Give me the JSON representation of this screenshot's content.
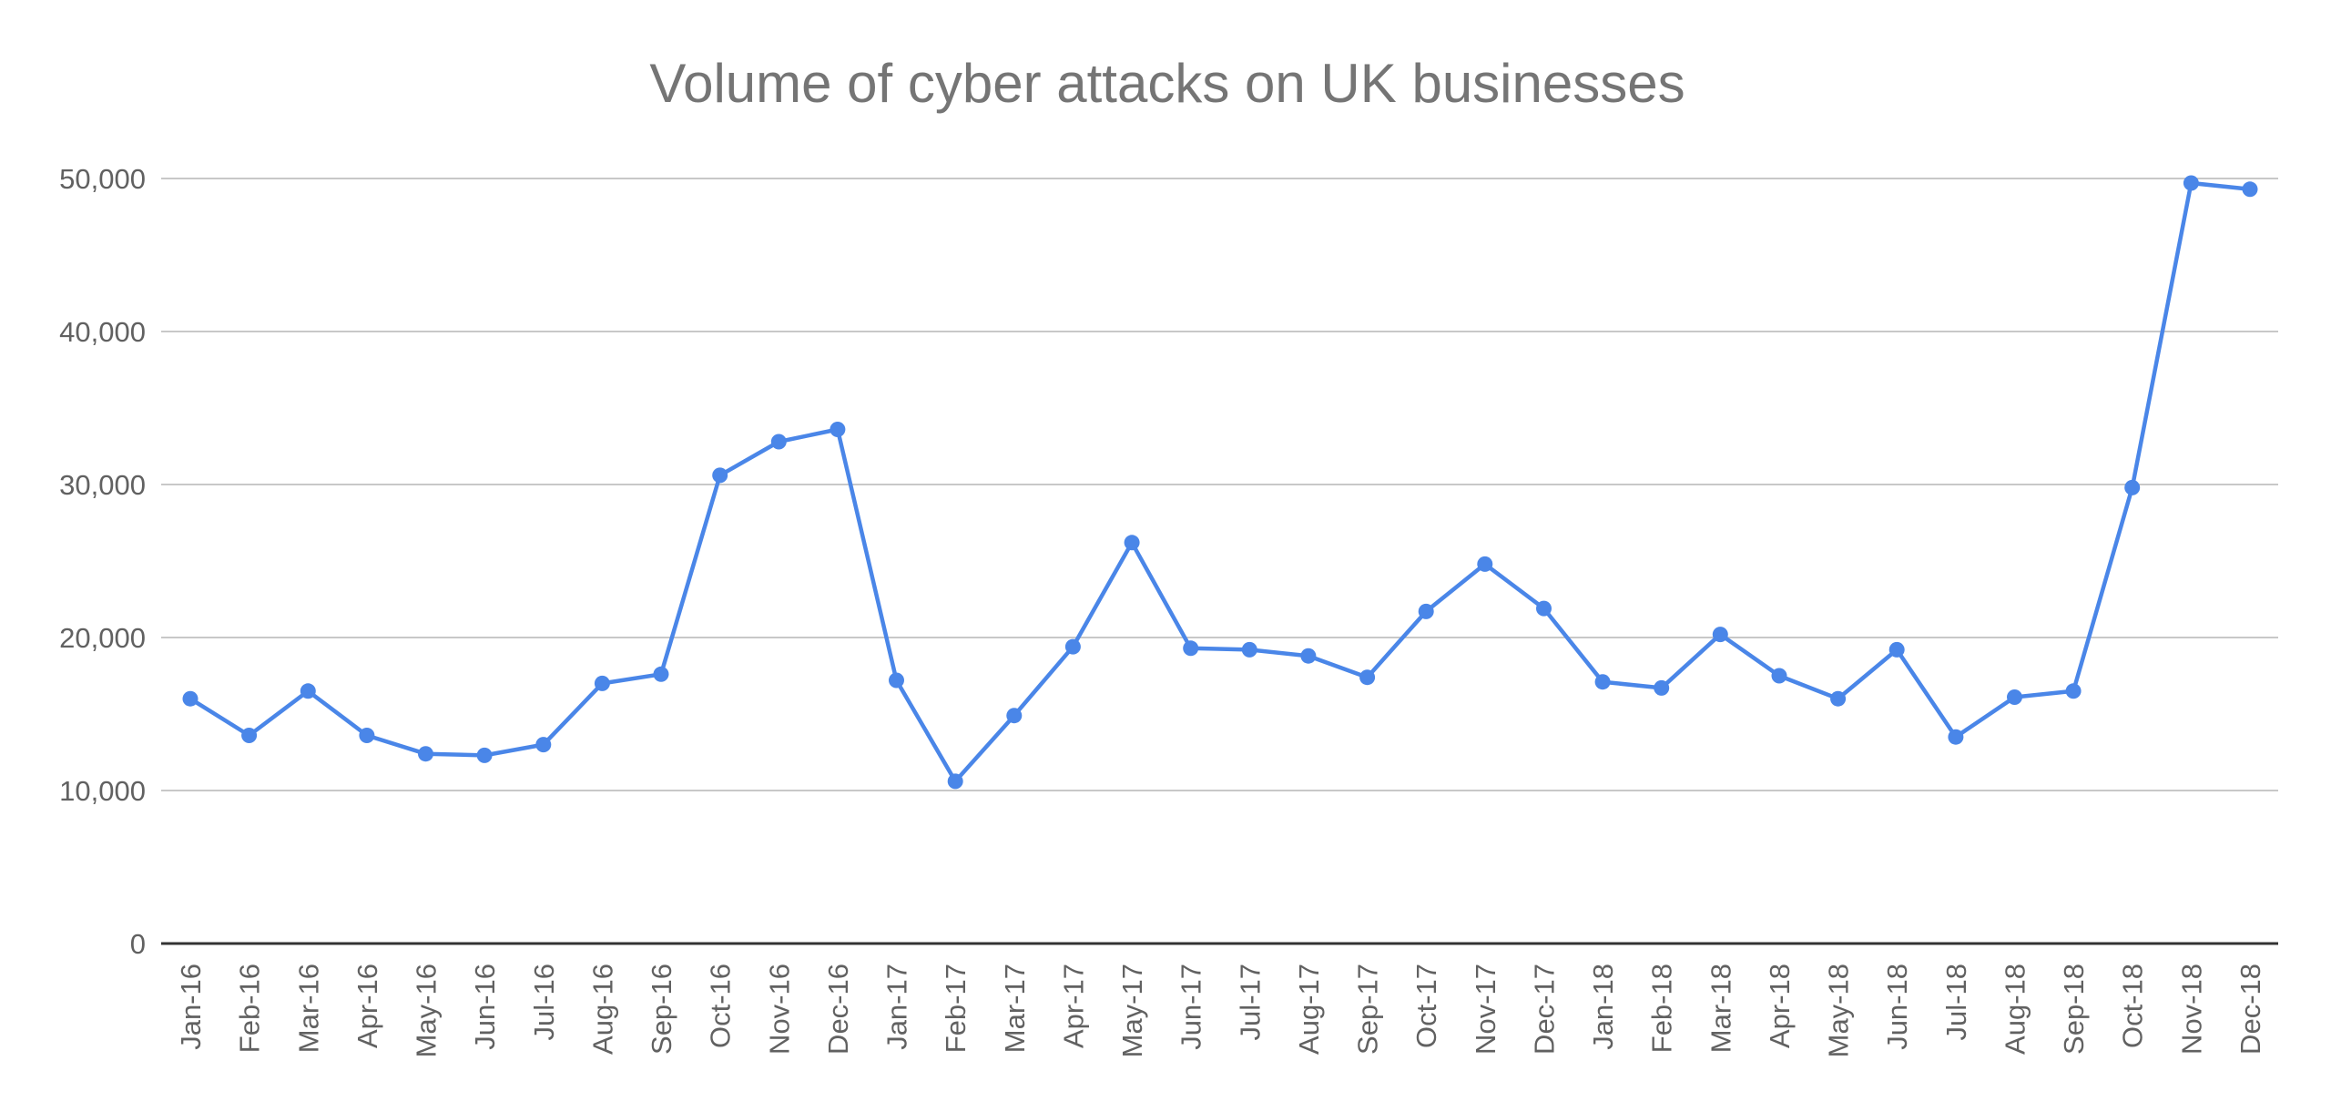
{
  "chart_data": {
    "type": "line",
    "title": "Volume of cyber attacks on UK businesses",
    "xlabel": "",
    "ylabel": "",
    "ylim": [
      0,
      50000
    ],
    "yticks": [
      "0",
      "10,000",
      "20,000",
      "30,000",
      "40,000",
      "50,000"
    ],
    "ytick_values": [
      0,
      10000,
      20000,
      30000,
      40000,
      50000
    ],
    "grid": true,
    "legend": "none",
    "categories": [
      "Jan-16",
      "Feb-16",
      "Mar-16",
      "Apr-16",
      "May-16",
      "Jun-16",
      "Jul-16",
      "Aug-16",
      "Sep-16",
      "Oct-16",
      "Nov-16",
      "Dec-16",
      "Jan-17",
      "Feb-17",
      "Mar-17",
      "Apr-17",
      "May-17",
      "Jun-17",
      "Jul-17",
      "Aug-17",
      "Sep-17",
      "Oct-17",
      "Nov-17",
      "Dec-17",
      "Jan-18",
      "Feb-18",
      "Mar-18",
      "Apr-18",
      "May-18",
      "Jun-18",
      "Jul-18",
      "Aug-18",
      "Sep-18",
      "Oct-18",
      "Nov-18",
      "Dec-18"
    ],
    "series": [
      {
        "color": "#4a86e8",
        "values": [
          16000,
          13600,
          16500,
          13600,
          12400,
          12300,
          13000,
          17000,
          17600,
          30600,
          32800,
          33600,
          17200,
          10600,
          14900,
          19400,
          26200,
          19300,
          19200,
          18800,
          17400,
          21700,
          24800,
          21900,
          17100,
          16700,
          20200,
          17500,
          16000,
          19200,
          13500,
          16100,
          16500,
          29800,
          49700,
          49300
        ]
      }
    ]
  },
  "colors": {
    "series": "#4a86e8",
    "grid": "#c8c8c8",
    "baseline": "#333333",
    "title": "#757575",
    "tick_label": "#616161"
  }
}
